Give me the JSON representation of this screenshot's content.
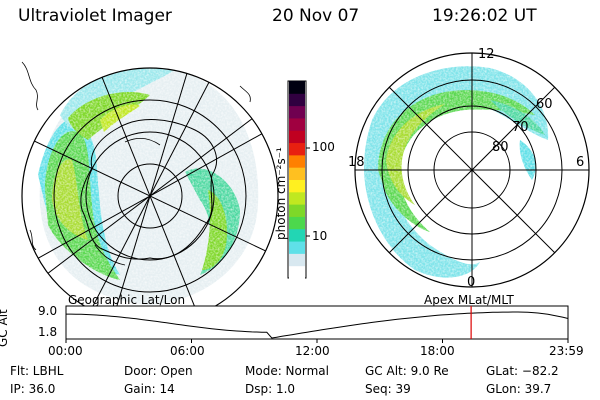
{
  "header": {
    "title": "Ultraviolet Imager",
    "date": "20 Nov 07",
    "time": "19:26:02 UT"
  },
  "colorbar": {
    "unit_label": "photon cm⁻²s⁻¹",
    "ticks": [
      {
        "label": "100",
        "value": 100
      },
      {
        "label": "10",
        "value": 10
      }
    ],
    "scale": "log",
    "colors": [
      "#ffffff",
      "#d8e8f0",
      "#5fe0e8",
      "#22d6b4",
      "#4cd84c",
      "#7ed828",
      "#c0e820",
      "#fff020",
      "#ffc020",
      "#ff8000",
      "#e82010",
      "#c00020",
      "#a00040",
      "#700050",
      "#300040",
      "#000010"
    ]
  },
  "left_map": {
    "caption": "Geographic Lat/Lon"
  },
  "right_map": {
    "caption": "Apex MLat/MLT",
    "mlt_labels": {
      "top": "12",
      "left": "18",
      "right": "6",
      "bottom": "0"
    },
    "lat_labels": [
      "60",
      "70",
      "80"
    ]
  },
  "timeline": {
    "ylabel": "GC Alt",
    "ymax_label": "9.0",
    "ymin_label": "1.8",
    "x_ticks": [
      "00:00",
      "06:00",
      "12:00",
      "18:00",
      "23:59"
    ],
    "current_time_fraction": 0.807,
    "marker_color": "#dd0000"
  },
  "info": {
    "flt": "Flt: LBHL",
    "door": "Door: Open",
    "mode": "Mode: Normal",
    "gc_alt": "GC Alt: 9.0 Re",
    "glat": "GLat: −82.2",
    "ip": "IP: 36.0",
    "gain": "Gain: 14",
    "dsp": "Dsp:    1.0",
    "seq": "Seq: 39",
    "glon": "GLon:  39.7"
  }
}
